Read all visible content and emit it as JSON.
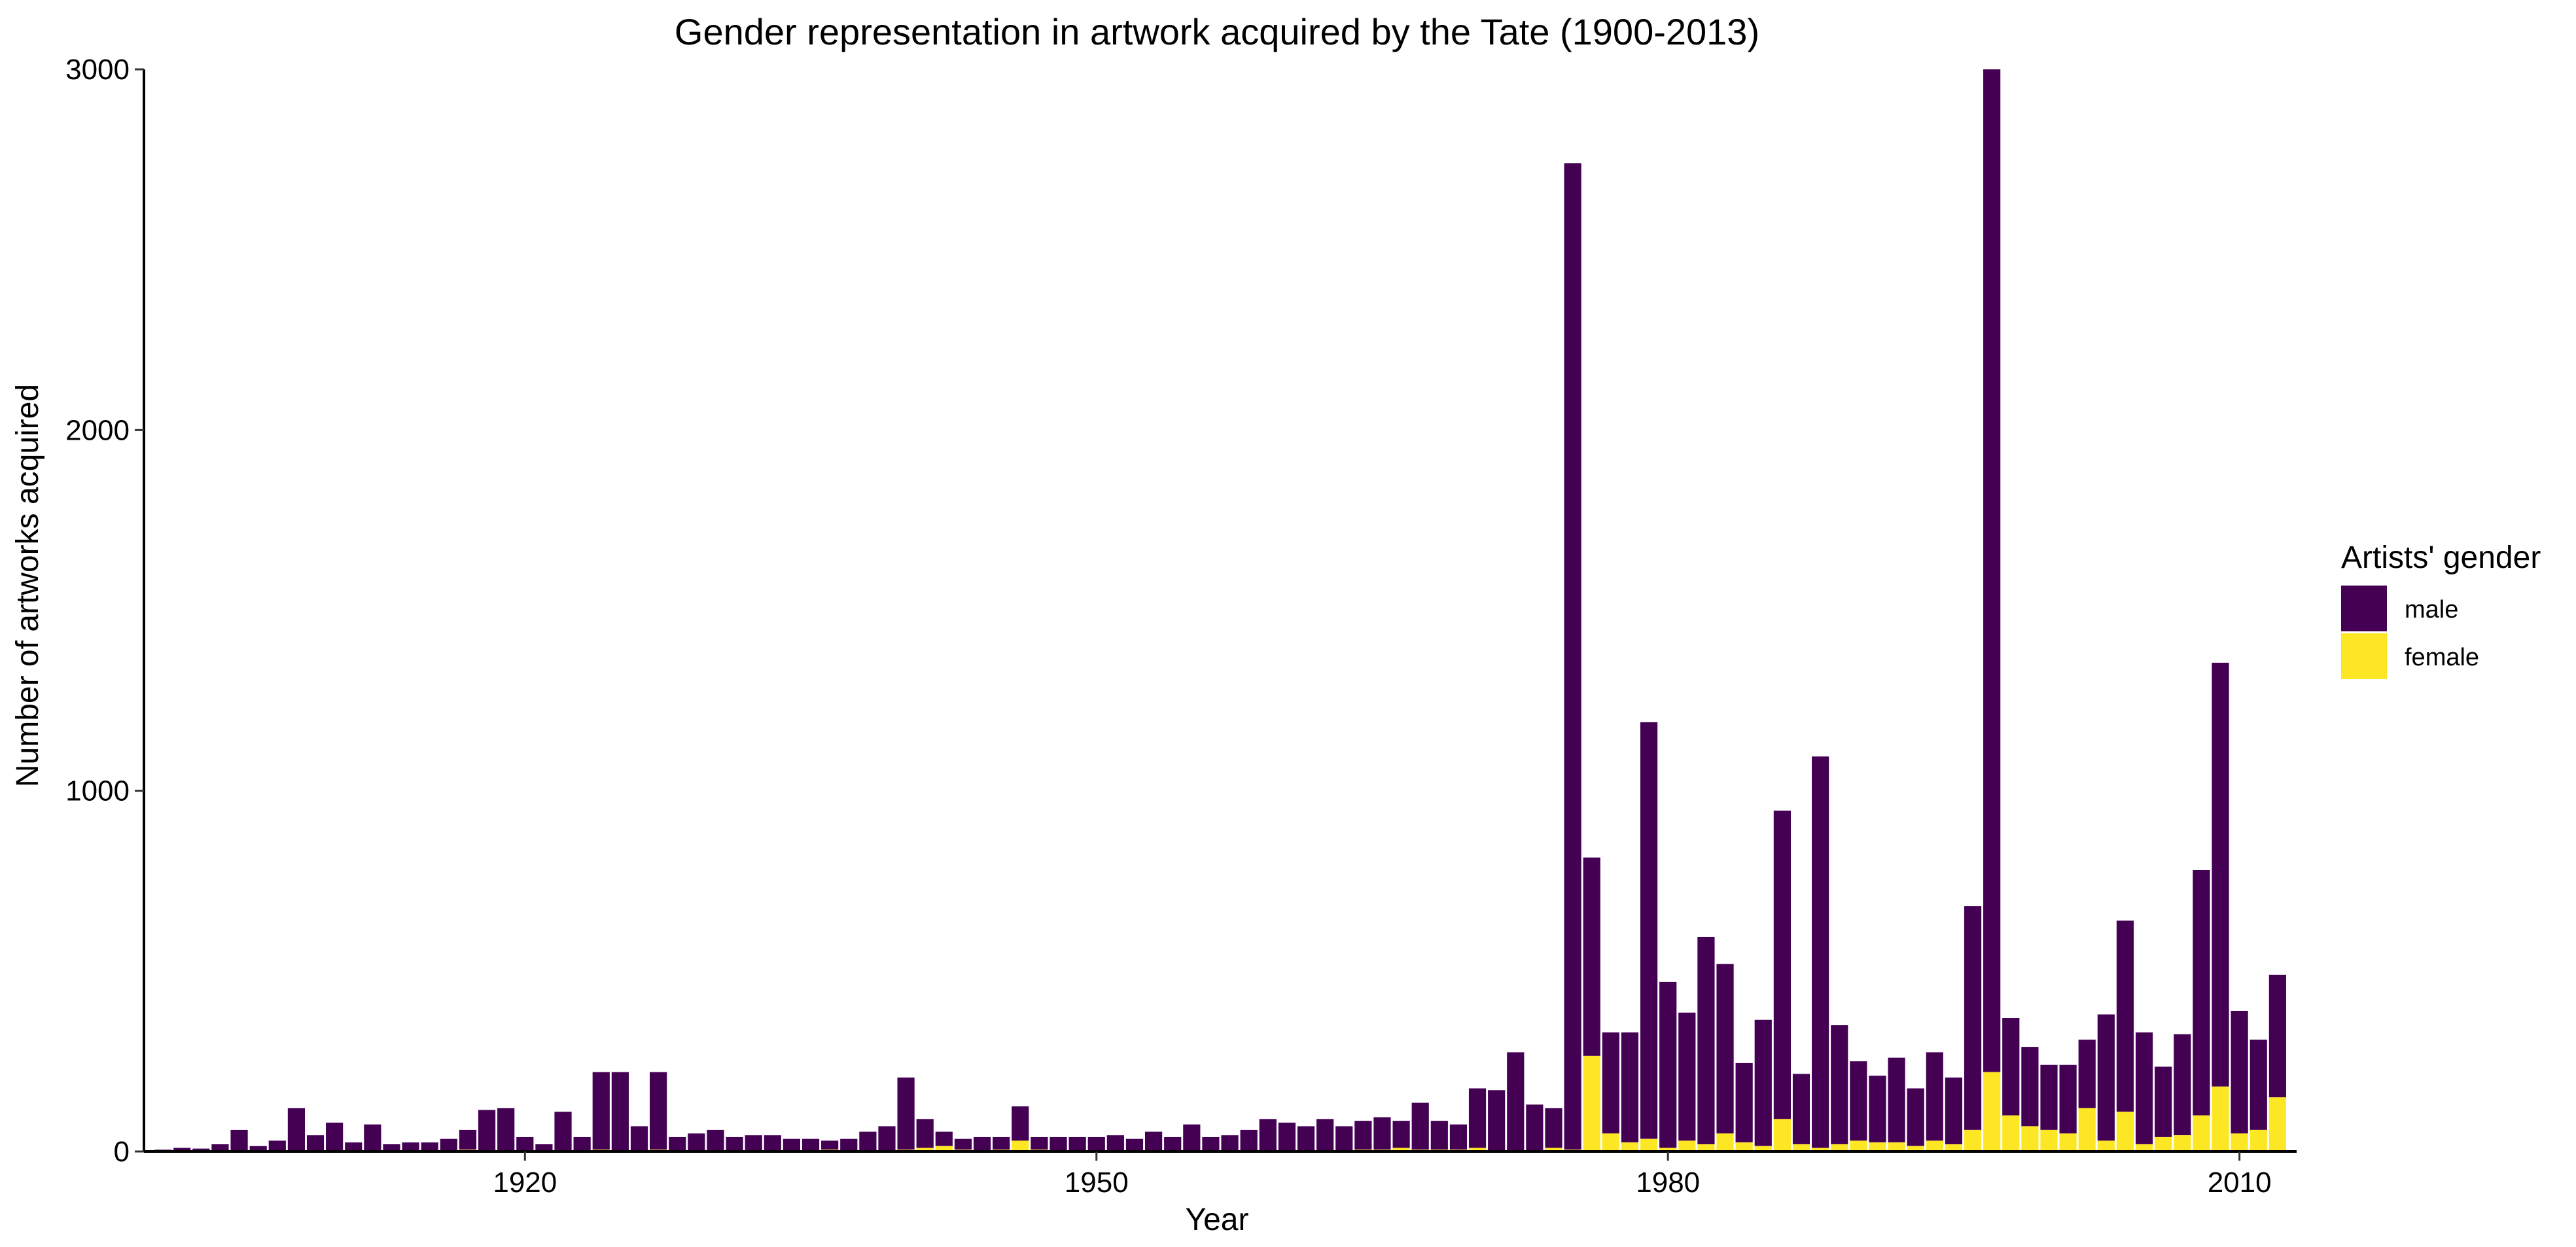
{
  "chart_data": {
    "type": "bar",
    "stacked": true,
    "title": "Gender representation in artwork acquired by the Tate (1900-2013)",
    "xlabel": "Year",
    "ylabel": "Number of artworks acquired",
    "ylim": [
      0,
      3000
    ],
    "xlim": [
      1900,
      2013
    ],
    "x_ticks": [
      1920,
      1950,
      1980,
      2010
    ],
    "y_ticks": [
      0,
      1000,
      2000,
      3000
    ],
    "legend": {
      "title": "Artists' gender",
      "placement": "right",
      "items": [
        {
          "label": "male",
          "color": "#440154"
        },
        {
          "label": "female",
          "color": "#FDE725"
        }
      ]
    },
    "categories": [
      1901,
      1902,
      1903,
      1904,
      1905,
      1906,
      1907,
      1908,
      1909,
      1910,
      1911,
      1912,
      1913,
      1914,
      1915,
      1916,
      1917,
      1918,
      1919,
      1920,
      1921,
      1922,
      1923,
      1924,
      1925,
      1926,
      1927,
      1928,
      1929,
      1930,
      1931,
      1932,
      1933,
      1934,
      1935,
      1936,
      1937,
      1938,
      1939,
      1940,
      1941,
      1942,
      1943,
      1944,
      1945,
      1946,
      1947,
      1948,
      1949,
      1950,
      1951,
      1952,
      1953,
      1954,
      1955,
      1956,
      1957,
      1958,
      1959,
      1960,
      1961,
      1962,
      1963,
      1964,
      1965,
      1966,
      1967,
      1968,
      1969,
      1970,
      1971,
      1972,
      1973,
      1974,
      1975,
      1976,
      1977,
      1978,
      1979,
      1980,
      1981,
      1982,
      1983,
      1984,
      1985,
      1986,
      1987,
      1988,
      1989,
      1990,
      1991,
      1992,
      1993,
      1994,
      1995,
      1996,
      1997,
      1998,
      1999,
      2000,
      2001,
      2002,
      2003,
      2004,
      2005,
      2006,
      2007,
      2008,
      2009,
      2010,
      2011,
      2012,
      2013
    ],
    "series": [
      {
        "name": "female",
        "color": "#FDE725",
        "values": [
          0,
          0,
          0,
          0,
          0,
          0,
          0,
          0,
          0,
          0,
          0,
          0,
          0,
          0,
          0,
          0,
          5,
          0,
          0,
          0,
          0,
          0,
          0,
          5,
          0,
          0,
          5,
          0,
          0,
          0,
          0,
          0,
          0,
          0,
          0,
          5,
          0,
          0,
          0,
          5,
          10,
          15,
          5,
          0,
          5,
          30,
          5,
          0,
          0,
          0,
          0,
          0,
          0,
          0,
          0,
          0,
          0,
          0,
          0,
          0,
          0,
          0,
          0,
          5,
          5,
          10,
          5,
          5,
          5,
          10,
          0,
          0,
          0,
          10,
          5,
          265,
          50,
          25,
          35,
          10,
          30,
          20,
          50,
          25,
          15,
          90,
          20,
          10,
          20,
          30,
          25,
          25,
          15,
          30,
          20,
          60,
          220,
          100,
          70,
          60,
          50,
          120,
          30,
          110,
          20,
          40,
          45,
          100,
          180,
          50,
          60,
          150,
          0
        ]
      },
      {
        "name": "male",
        "color": "#440154",
        "values": [
          5,
          10,
          8,
          20,
          60,
          15,
          30,
          120,
          45,
          80,
          25,
          75,
          20,
          25,
          25,
          35,
          55,
          115,
          120,
          40,
          20,
          110,
          40,
          215,
          220,
          70,
          215,
          40,
          50,
          60,
          40,
          45,
          45,
          35,
          35,
          25,
          35,
          55,
          70,
          200,
          80,
          40,
          30,
          40,
          35,
          95,
          35,
          40,
          40,
          40,
          45,
          35,
          55,
          40,
          75,
          40,
          45,
          60,
          90,
          80,
          70,
          90,
          70,
          80,
          90,
          75,
          130,
          80,
          70,
          165,
          170,
          275,
          130,
          110,
          2735,
          550,
          280,
          305,
          1155,
          460,
          355,
          575,
          470,
          220,
          350,
          855,
          195,
          1085,
          330,
          220,
          185,
          235,
          160,
          245,
          185,
          620,
          2780,
          270,
          220,
          180,
          190,
          190,
          350,
          530,
          310,
          195,
          280,
          680,
          1175,
          340,
          250,
          340,
          0
        ]
      }
    ]
  }
}
